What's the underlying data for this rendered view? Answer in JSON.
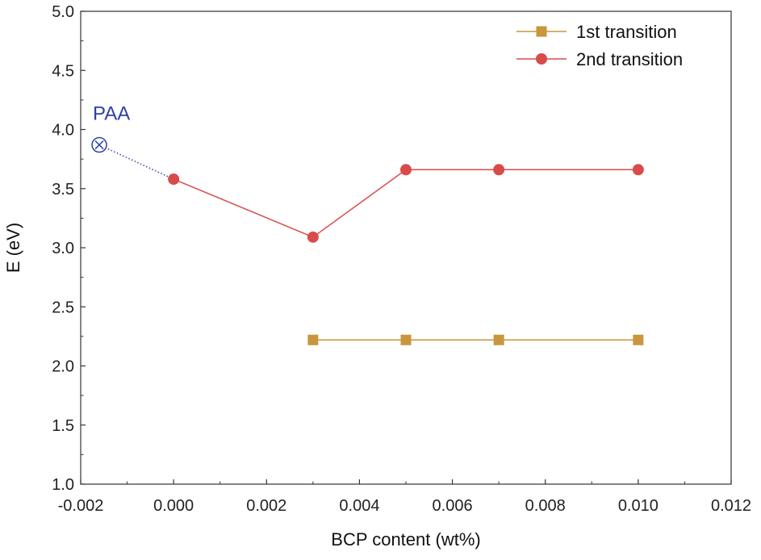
{
  "chart_data": {
    "type": "line",
    "xlabel": "BCP content (wt%)",
    "ylabel": "E (eV)",
    "xlim": [
      -0.002,
      0.012
    ],
    "ylim": [
      1.0,
      5.0
    ],
    "x_ticks": [
      -0.002,
      0.0,
      0.002,
      0.004,
      0.006,
      0.008,
      0.01,
      0.012
    ],
    "x_tick_labels": [
      "-0.002",
      "0.000",
      "0.002",
      "0.004",
      "0.006",
      "0.008",
      "0.010",
      "0.012"
    ],
    "y_ticks": [
      1.0,
      1.5,
      2.0,
      2.5,
      3.0,
      3.5,
      4.0,
      4.5,
      5.0
    ],
    "y_tick_labels": [
      "1.0",
      "1.5",
      "2.0",
      "2.5",
      "3.0",
      "3.5",
      "4.0",
      "4.5",
      "5.0"
    ],
    "legend_position": "top-right",
    "series": [
      {
        "name": "1st transition",
        "marker": "square",
        "color": "#c8963c",
        "points": [
          {
            "x": 0.003,
            "y": 2.22
          },
          {
            "x": 0.005,
            "y": 2.22
          },
          {
            "x": 0.007,
            "y": 2.22
          },
          {
            "x": 0.01,
            "y": 2.22
          }
        ]
      },
      {
        "name": "2nd transition",
        "marker": "circle",
        "color": "#d94b4b",
        "points": [
          {
            "x": 0.0,
            "y": 3.58
          },
          {
            "x": 0.003,
            "y": 3.09
          },
          {
            "x": 0.005,
            "y": 3.66
          },
          {
            "x": 0.007,
            "y": 3.66
          },
          {
            "x": 0.01,
            "y": 3.66
          }
        ]
      }
    ],
    "reference_point": {
      "label": "PAA",
      "x": -0.0016,
      "y": 3.87,
      "color": "#2f3fa8",
      "connects_to": {
        "x": 0.0,
        "y": 3.58
      }
    }
  }
}
